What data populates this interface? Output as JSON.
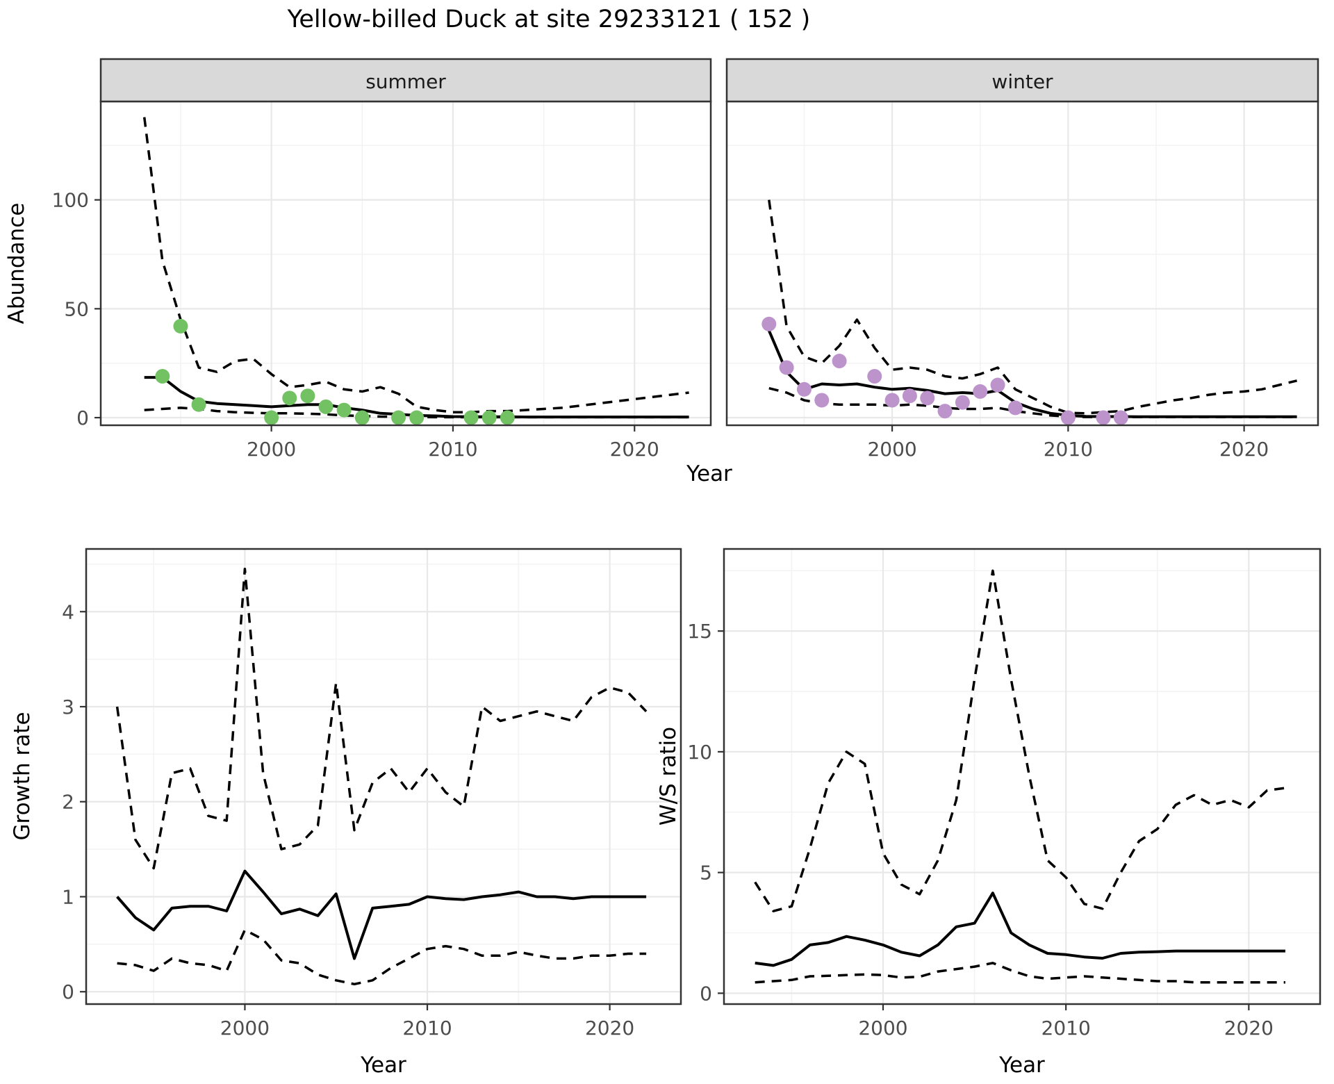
{
  "title": "Yellow-billed Duck at site 29233121 ( 152 )",
  "colors": {
    "summer_point": "#72c163",
    "winter_point": "#bd93cc",
    "line": "#000000",
    "strip_bg": "#d9d9d9",
    "tick_text": "#4d4d4d",
    "major_grid": "#e8e8e8",
    "minor_grid": "#f3f3f3",
    "panel_border": "#333333"
  },
  "chart_data": [
    {
      "id": "abundance-summer",
      "type": "line+scatter",
      "facet_label": "summer",
      "xlabel": "Year",
      "ylabel": "Abundance",
      "xlim": [
        1990.6,
        2024.2
      ],
      "ylim": [
        -3.5,
        145.2
      ],
      "x_ticks": [
        2000,
        2010,
        2020
      ],
      "x_minor": [
        1995,
        2005,
        2015
      ],
      "y_ticks": [
        0,
        50,
        100
      ],
      "y_minor": [
        25,
        75,
        125
      ],
      "years": [
        1993,
        1994,
        1995,
        1996,
        1997,
        1998,
        1999,
        2000,
        2001,
        2002,
        2003,
        2004,
        2005,
        2006,
        2007,
        2008,
        2009,
        2010,
        2011,
        2012,
        2013,
        2014,
        2015,
        2016,
        2017,
        2018,
        2019,
        2020,
        2021,
        2022,
        2023
      ],
      "series": [
        {
          "name": "upper-ci",
          "style": "dashed",
          "values": [
            138,
            72,
            45,
            23,
            21,
            26,
            27,
            20,
            14,
            15,
            16.5,
            13,
            12,
            14,
            11,
            5,
            3.5,
            2.5,
            2.5,
            3,
            3,
            3.5,
            4,
            4.5,
            5.5,
            6.5,
            7.5,
            8.5,
            9.5,
            10.5,
            11.5
          ]
        },
        {
          "name": "lower-ci",
          "style": "dashed",
          "values": [
            3.5,
            4,
            4.5,
            4,
            3,
            2.5,
            2.2,
            2,
            2,
            1.8,
            1.5,
            1,
            0.8,
            0.5,
            0.4,
            0.3,
            0.2,
            0.2,
            0.2,
            0.2,
            0.2,
            0.2,
            0.2,
            0.2,
            0.2,
            0.2,
            0.2,
            0.2,
            0.2,
            0.2,
            0.2
          ]
        },
        {
          "name": "median",
          "style": "solid",
          "values": [
            18.5,
            18.5,
            12,
            7.5,
            6.5,
            6,
            5.5,
            5,
            5.5,
            6,
            6,
            4.5,
            3.5,
            2,
            1.5,
            1,
            0.8,
            0.5,
            0.4,
            0.4,
            0.4,
            0.3,
            0.3,
            0.3,
            0.3,
            0.3,
            0.3,
            0.3,
            0.3,
            0.3,
            0.3
          ]
        }
      ],
      "points": {
        "color": "#72c163",
        "x": [
          1994,
          1995,
          1996,
          2000,
          2001,
          2002,
          2003,
          2004,
          2005,
          2007,
          2008,
          2011,
          2012,
          2013
        ],
        "y": [
          19,
          42,
          6,
          0,
          9,
          10,
          5,
          3.5,
          0,
          0,
          0,
          0,
          0,
          0
        ]
      }
    },
    {
      "id": "abundance-winter",
      "type": "line+scatter",
      "facet_label": "winter",
      "xlabel": "",
      "ylabel": "",
      "xlim": [
        1990.6,
        2024.2
      ],
      "ylim": [
        -3.5,
        145.2
      ],
      "x_ticks": [
        2000,
        2010,
        2020
      ],
      "x_minor": [
        1995,
        2005,
        2015
      ],
      "y_ticks": [
        0,
        50,
        100
      ],
      "y_minor": [
        25,
        75,
        125
      ],
      "years": [
        1993,
        1994,
        1995,
        1996,
        1997,
        1998,
        1999,
        2000,
        2001,
        2002,
        2003,
        2004,
        2005,
        2006,
        2007,
        2008,
        2009,
        2010,
        2011,
        2012,
        2013,
        2014,
        2015,
        2016,
        2017,
        2018,
        2019,
        2020,
        2021,
        2022,
        2023
      ],
      "series": [
        {
          "name": "upper-ci",
          "style": "dashed",
          "values": [
            100,
            42,
            28,
            25,
            33,
            45,
            32,
            22,
            23,
            22,
            19,
            18,
            20,
            23,
            13,
            9,
            5,
            2.2,
            2,
            2.5,
            3,
            5,
            6.5,
            8,
            9,
            10.5,
            11.5,
            12,
            13,
            15,
            17
          ]
        },
        {
          "name": "lower-ci",
          "style": "dashed",
          "values": [
            13.5,
            11.5,
            8,
            6.5,
            6,
            6,
            6,
            5.5,
            6,
            5.5,
            4.5,
            4,
            4,
            4.5,
            3,
            2,
            1,
            0.5,
            0.3,
            0.3,
            0.3,
            0.3,
            0.3,
            0.3,
            0.3,
            0.3,
            0.3,
            0.3,
            0.3,
            0.3,
            0.3
          ]
        },
        {
          "name": "median",
          "style": "solid",
          "values": [
            40,
            21,
            13,
            15.5,
            15,
            15.5,
            14,
            13,
            13.5,
            12.5,
            11,
            11.5,
            11,
            12.5,
            7,
            4,
            2,
            1,
            0.6,
            0.5,
            0.5,
            0.4,
            0.4,
            0.4,
            0.4,
            0.4,
            0.4,
            0.4,
            0.4,
            0.4,
            0.4
          ]
        }
      ],
      "points": {
        "color": "#bd93cc",
        "x": [
          1993,
          1994,
          1995,
          1996,
          1997,
          1999,
          2000,
          2001,
          2002,
          2003,
          2004,
          2005,
          2006,
          2007,
          2010,
          2012,
          2013
        ],
        "y": [
          43,
          23,
          13,
          8,
          26,
          19,
          8,
          10,
          9,
          3,
          7,
          12,
          15,
          4.5,
          0,
          0,
          0
        ]
      }
    },
    {
      "id": "growth-rate",
      "type": "line",
      "facet_label": "",
      "xlabel": "Year",
      "ylabel": "Growth rate",
      "xlim": [
        1991.3,
        2023.9
      ],
      "ylim": [
        -0.13,
        4.66
      ],
      "x_ticks": [
        2000,
        2010,
        2020
      ],
      "x_minor": [
        1995,
        2005,
        2015
      ],
      "y_ticks": [
        0,
        1,
        2,
        3,
        4
      ],
      "y_minor": [
        0.5,
        1.5,
        2.5,
        3.5,
        4.5
      ],
      "years": [
        1993,
        1994,
        1995,
        1996,
        1997,
        1998,
        1999,
        2000,
        2001,
        2002,
        2003,
        2004,
        2005,
        2006,
        2007,
        2008,
        2009,
        2010,
        2011,
        2012,
        2013,
        2014,
        2015,
        2016,
        2017,
        2018,
        2019,
        2020,
        2021,
        2022
      ],
      "series": [
        {
          "name": "upper-ci",
          "style": "dashed",
          "values": [
            3.0,
            1.6,
            1.3,
            2.3,
            2.35,
            1.85,
            1.8,
            4.45,
            2.3,
            1.5,
            1.55,
            1.75,
            3.25,
            1.7,
            2.2,
            2.35,
            2.1,
            2.35,
            2.1,
            1.95,
            3.0,
            2.85,
            2.9,
            2.95,
            2.9,
            2.85,
            3.1,
            3.2,
            3.15,
            2.95
          ]
        },
        {
          "name": "lower-ci",
          "style": "dashed",
          "values": [
            0.3,
            0.28,
            0.22,
            0.35,
            0.3,
            0.28,
            0.22,
            0.65,
            0.55,
            0.33,
            0.3,
            0.18,
            0.12,
            0.08,
            0.12,
            0.25,
            0.35,
            0.45,
            0.48,
            0.45,
            0.38,
            0.38,
            0.42,
            0.38,
            0.35,
            0.35,
            0.38,
            0.38,
            0.4,
            0.4
          ]
        },
        {
          "name": "median",
          "style": "solid",
          "values": [
            1.0,
            0.78,
            0.65,
            0.88,
            0.9,
            0.9,
            0.85,
            1.27,
            1.05,
            0.82,
            0.87,
            0.8,
            1.03,
            0.35,
            0.88,
            0.9,
            0.92,
            1.0,
            0.98,
            0.97,
            1.0,
            1.02,
            1.05,
            1.0,
            1.0,
            0.98,
            1.0,
            1.0,
            1.0,
            1.0
          ]
        }
      ]
    },
    {
      "id": "ws-ratio",
      "type": "line",
      "facet_label": "",
      "xlabel": "Year",
      "ylabel": "W/S ratio",
      "xlim": [
        1991.3,
        2023.9
      ],
      "ylim": [
        -0.45,
        18.4
      ],
      "x_ticks": [
        2000,
        2010,
        2020
      ],
      "x_minor": [
        1995,
        2005,
        2015
      ],
      "y_ticks": [
        0,
        5,
        10,
        15
      ],
      "y_minor": [
        2.5,
        7.5,
        12.5,
        17.5
      ],
      "years": [
        1993,
        1994,
        1995,
        1996,
        1997,
        1998,
        1999,
        2000,
        2001,
        2002,
        2003,
        2004,
        2005,
        2006,
        2007,
        2008,
        2009,
        2010,
        2011,
        2012,
        2013,
        2014,
        2015,
        2016,
        2017,
        2018,
        2019,
        2020,
        2021,
        2022
      ],
      "series": [
        {
          "name": "upper-ci",
          "style": "dashed",
          "values": [
            4.6,
            3.4,
            3.6,
            6.0,
            8.7,
            10.0,
            9.5,
            5.8,
            4.5,
            4.1,
            5.5,
            8.0,
            13.0,
            17.5,
            13.0,
            9.0,
            5.5,
            4.8,
            3.7,
            3.5,
            5.0,
            6.3,
            6.8,
            7.8,
            8.2,
            7.8,
            8.0,
            7.7,
            8.4,
            8.5
          ]
        },
        {
          "name": "lower-ci",
          "style": "dashed",
          "values": [
            0.45,
            0.5,
            0.55,
            0.7,
            0.72,
            0.75,
            0.78,
            0.75,
            0.65,
            0.68,
            0.9,
            1.0,
            1.1,
            1.25,
            0.95,
            0.7,
            0.6,
            0.65,
            0.7,
            0.65,
            0.6,
            0.55,
            0.5,
            0.5,
            0.45,
            0.45,
            0.45,
            0.45,
            0.45,
            0.45
          ]
        },
        {
          "name": "median",
          "style": "solid",
          "values": [
            1.25,
            1.15,
            1.4,
            2.0,
            2.1,
            2.35,
            2.2,
            2.0,
            1.7,
            1.55,
            2.0,
            2.75,
            2.9,
            4.15,
            2.5,
            2.0,
            1.65,
            1.6,
            1.5,
            1.45,
            1.65,
            1.7,
            1.72,
            1.75,
            1.75,
            1.75,
            1.75,
            1.75,
            1.75,
            1.75
          ]
        }
      ]
    }
  ]
}
